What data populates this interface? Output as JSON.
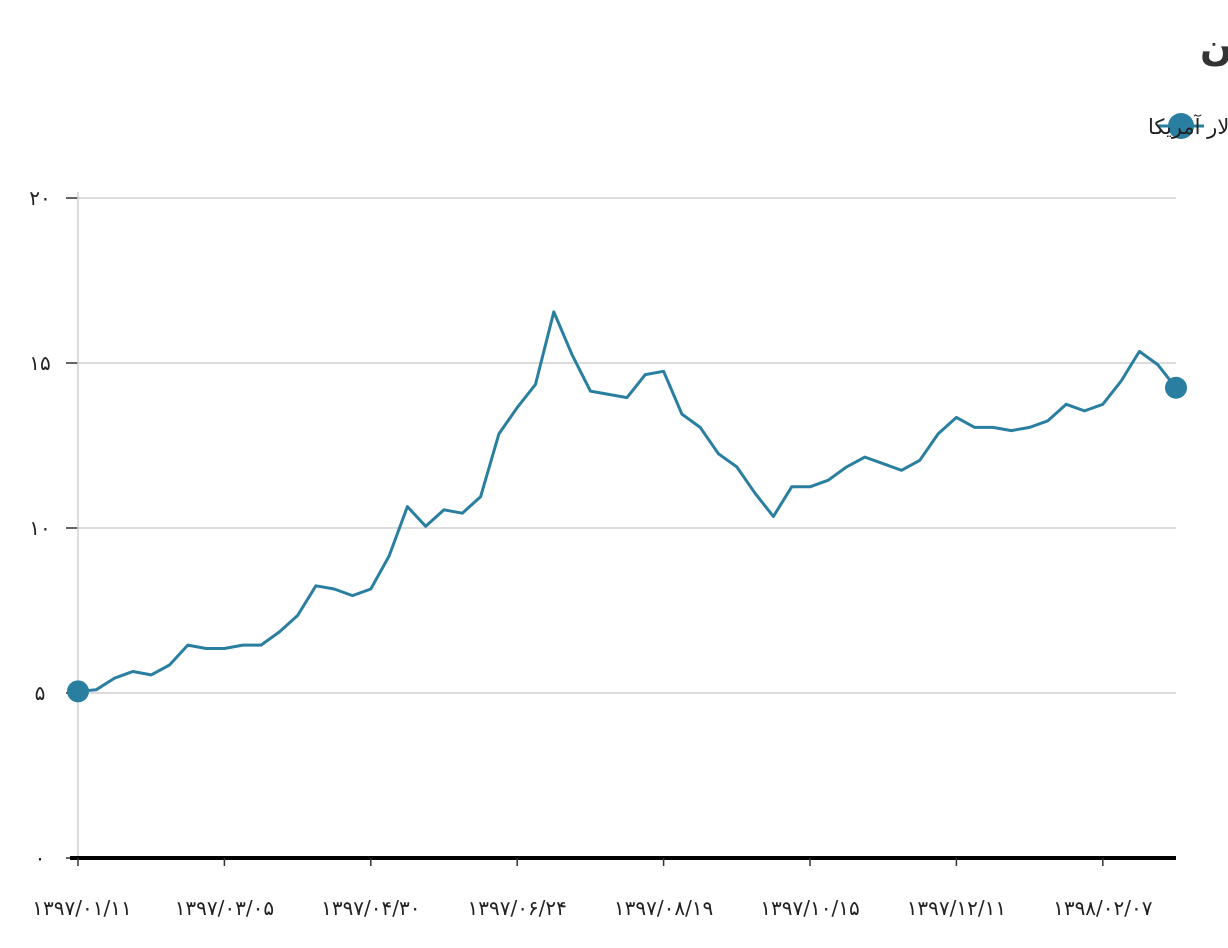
{
  "chart_data": {
    "type": "line",
    "title": "قیمت هفتگی دلار در ایران",
    "legend": "top-right",
    "grid": true,
    "ylim": [
      0,
      20
    ],
    "yticks": [
      0,
      5,
      10,
      15,
      20
    ],
    "ytick_labels": [
      "۰",
      "۵",
      "۱۰",
      "۱۵",
      "۲۰"
    ],
    "xtick_labels": [
      "۱۳۹۷/۰۱/۱۱",
      "۱۳۹۷/۰۳/۰۵",
      "۱۳۹۷/۰۴/۳۰",
      "۱۳۹۷/۰۶/۲۴",
      "۱۳۹۷/۰۸/۱۹",
      "۱۳۹۷/۱۰/۱۵",
      "۱۳۹۷/۱۲/۱۱",
      "۱۳۹۸/۰۲/۰۷"
    ],
    "xtick_indices": [
      0,
      8,
      16,
      24,
      32,
      40,
      48,
      56
    ],
    "series": [
      {
        "name": "یک دلار آمریکا",
        "color": "#2a7fa0",
        "values": [
          5.05,
          5.1,
          5.45,
          5.65,
          5.55,
          5.85,
          6.45,
          6.35,
          6.35,
          6.45,
          6.45,
          6.85,
          7.35,
          8.25,
          8.15,
          7.95,
          8.15,
          9.15,
          10.65,
          10.05,
          10.55,
          10.45,
          10.95,
          12.85,
          13.65,
          14.35,
          16.55,
          15.25,
          14.15,
          14.05,
          13.95,
          14.65,
          14.75,
          13.45,
          13.05,
          12.25,
          11.85,
          11.05,
          10.35,
          11.25,
          11.25,
          11.45,
          11.85,
          12.15,
          11.95,
          11.75,
          12.05,
          12.85,
          13.35,
          13.05,
          13.05,
          12.95,
          13.05,
          13.25,
          13.75,
          13.55,
          13.75,
          14.45,
          15.35,
          14.95,
          14.25
        ]
      }
    ]
  }
}
